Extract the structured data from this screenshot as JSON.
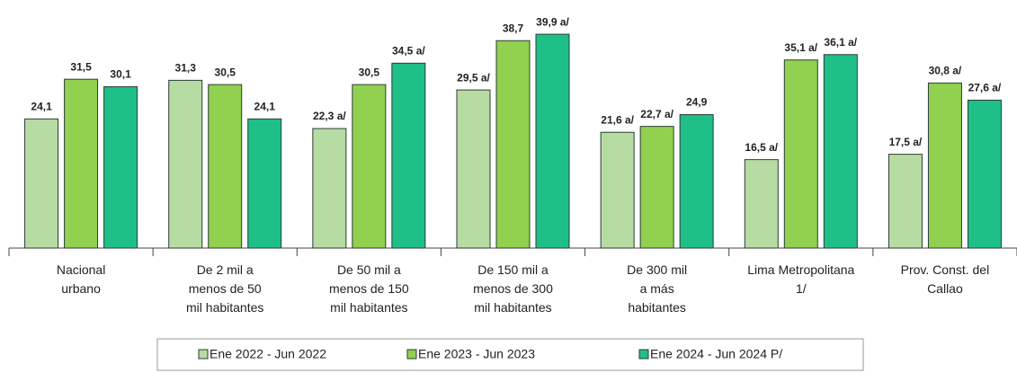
{
  "chart_data": {
    "type": "bar",
    "categories": [
      "Nacional\nurbano",
      "De 2 mil a\nmenos de 50\nmil habitantes",
      "De 50 mil a\nmenos de 150\nmil habitantes",
      "De 150 mil a\nmenos de 300\nmil habitantes",
      "De 300 mil\na  más\nhabitantes",
      "Lima Metropolitana\n1/",
      "Prov. Const. del\nCallao"
    ],
    "series": [
      {
        "name": "Ene 2022 - Jun 2022",
        "color": "#b6dca3",
        "values": [
          24.1,
          31.3,
          22.3,
          29.5,
          21.6,
          16.5,
          17.5
        ],
        "value_labels": [
          "24,1",
          "31,3",
          "22,3 a/",
          "29,5 a/",
          "21,6 a/",
          "16,5 a/",
          "17,5 a/"
        ]
      },
      {
        "name": "Ene 2023 - Jun 2023",
        "color": "#92d050",
        "values": [
          31.5,
          30.5,
          30.5,
          38.7,
          22.7,
          35.1,
          30.8
        ],
        "value_labels": [
          "31,5",
          "30,5",
          "30,5",
          "38,7",
          "22,7 a/",
          "35,1 a/",
          "30,8 a/"
        ]
      },
      {
        "name": "Ene 2024 - Jun 2024 P/",
        "color": "#1fbf88",
        "values": [
          30.1,
          24.1,
          34.5,
          39.9,
          24.9,
          36.1,
          27.6
        ],
        "value_labels": [
          "30,1",
          "24,1",
          "34,5 a/",
          "39,9 a/",
          "24,9",
          "36,1 a/",
          "27,6 a/"
        ]
      }
    ],
    "ylim": [
      0,
      40
    ],
    "legend": "bottom"
  }
}
